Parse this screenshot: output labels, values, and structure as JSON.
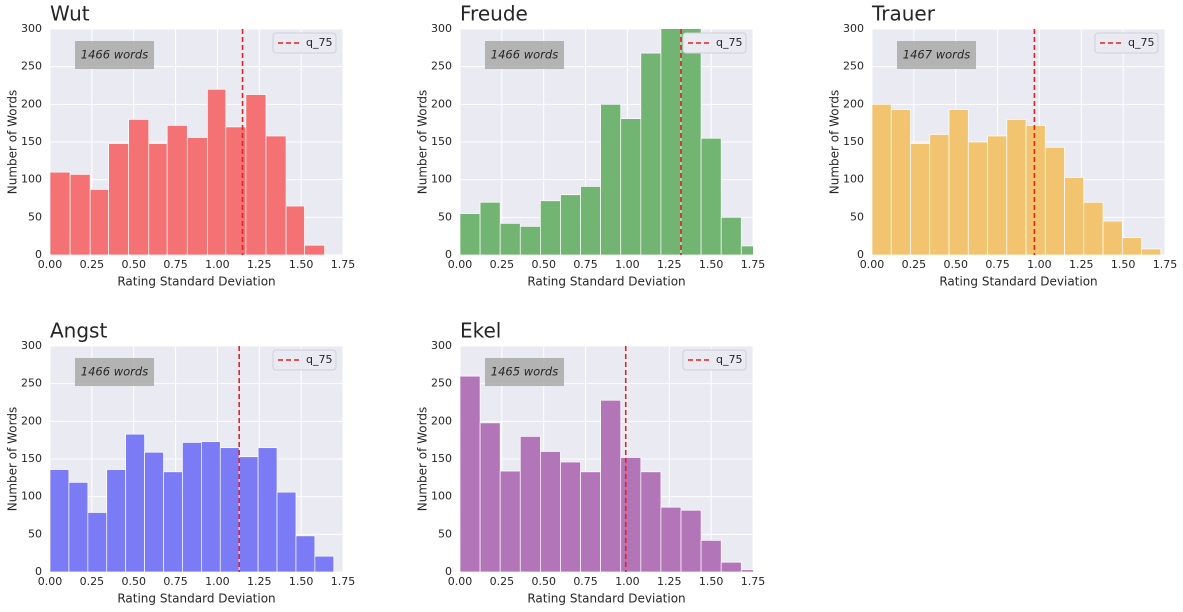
{
  "chart_data": [
    {
      "type": "histogram",
      "title": "Wut",
      "annotation": "1466 words",
      "xlabel": "Rating Standard Deviation",
      "ylabel": "Number of Words",
      "bins": [
        0,
        0.12,
        0.24,
        0.35,
        0.47,
        0.59,
        0.7,
        0.82,
        0.94,
        1.05,
        1.17,
        1.29,
        1.41,
        1.52,
        1.64
      ],
      "values": [
        110,
        107,
        87,
        148,
        180,
        148,
        172,
        156,
        220,
        170,
        213,
        158,
        65,
        13
      ],
      "color": "#f47174",
      "lines": [
        {
          "name": "q_75",
          "value": 1.15,
          "color": "#e8211d"
        }
      ],
      "xlim": [
        0,
        1.75
      ],
      "ylim": [
        0,
        300
      ],
      "grid": true,
      "legend": "upper right",
      "xticks": [
        {
          "value": 0,
          "label": "0.00"
        },
        {
          "value": 0.25,
          "label": "0.25"
        },
        {
          "value": 0.5,
          "label": "0.50"
        },
        {
          "value": 0.75,
          "label": "0.75"
        },
        {
          "value": 1,
          "label": "1.00"
        },
        {
          "value": 1.25,
          "label": "1.25"
        },
        {
          "value": 1.5,
          "label": "1.50"
        },
        {
          "value": 1.75,
          "label": "1.75"
        }
      ],
      "yticks": [
        0,
        50,
        100,
        150,
        200,
        250,
        300
      ]
    },
    {
      "type": "histogram",
      "title": "Freude",
      "annotation": "1466 words",
      "xlabel": "Rating Standard Deviation",
      "ylabel": "Number of Words",
      "bins": [
        0,
        0.12,
        0.24,
        0.36,
        0.48,
        0.6,
        0.72,
        0.84,
        0.96,
        1.08,
        1.2,
        1.32,
        1.44,
        1.56,
        1.68,
        1.8
      ],
      "values": [
        55,
        70,
        42,
        38,
        72,
        80,
        91,
        200,
        181,
        268,
        320,
        305,
        155,
        50,
        12
      ],
      "color": "#72b472",
      "lines": [
        {
          "name": "q_75",
          "value": 1.32,
          "color": "#e8211d"
        }
      ],
      "xlim": [
        0,
        1.75
      ],
      "ylim": [
        0,
        300
      ],
      "grid": true,
      "legend": "upper right",
      "xticks": [
        {
          "value": 0,
          "label": "0.00"
        },
        {
          "value": 0.25,
          "label": "0.25"
        },
        {
          "value": 0.5,
          "label": "0.50"
        },
        {
          "value": 0.75,
          "label": "0.75"
        },
        {
          "value": 1,
          "label": "1.00"
        },
        {
          "value": 1.25,
          "label": "1.25"
        },
        {
          "value": 1.5,
          "label": "1.50"
        },
        {
          "value": 1.75,
          "label": "1.75"
        }
      ],
      "yticks": [
        0,
        50,
        100,
        150,
        200,
        250,
        300
      ]
    },
    {
      "type": "histogram",
      "title": "Trauer",
      "annotation": "1467 words",
      "xlabel": "Rating Standard Deviation",
      "ylabel": "Number of Words",
      "bins": [
        0,
        0.115,
        0.23,
        0.345,
        0.46,
        0.575,
        0.69,
        0.805,
        0.92,
        1.035,
        1.15,
        1.265,
        1.38,
        1.495,
        1.61,
        1.725
      ],
      "values": [
        200,
        193,
        148,
        160,
        193,
        150,
        158,
        180,
        172,
        143,
        103,
        70,
        45,
        23,
        8
      ],
      "color": "#f3c470",
      "lines": [
        {
          "name": "q_75",
          "value": 0.97,
          "color": "#e8211d"
        }
      ],
      "xlim": [
        0,
        1.75
      ],
      "ylim": [
        0,
        300
      ],
      "grid": true,
      "legend": "upper right",
      "xticks": [
        {
          "value": 0,
          "label": "0.00"
        },
        {
          "value": 0.25,
          "label": "0.25"
        },
        {
          "value": 0.5,
          "label": "0.50"
        },
        {
          "value": 0.75,
          "label": "0.75"
        },
        {
          "value": 1,
          "label": "1.00"
        },
        {
          "value": 1.25,
          "label": "1.25"
        },
        {
          "value": 1.5,
          "label": "1.50"
        },
        {
          "value": 1.75,
          "label": "1.75"
        }
      ],
      "yticks": [
        0,
        50,
        100,
        150,
        200,
        250,
        300
      ]
    },
    {
      "type": "histogram",
      "title": "Angst",
      "annotation": "1466 words",
      "xlabel": "Rating Standard Deviation",
      "ylabel": "Number of Words",
      "bins": [
        0,
        0.113,
        0.226,
        0.339,
        0.452,
        0.565,
        0.678,
        0.791,
        0.904,
        1.017,
        1.13,
        1.243,
        1.356,
        1.469,
        1.582,
        1.695
      ],
      "values": [
        136,
        119,
        79,
        136,
        183,
        159,
        133,
        172,
        173,
        165,
        153,
        165,
        106,
        48,
        21
      ],
      "color": "#7b7bf5",
      "lines": [
        {
          "name": "q_75",
          "value": 1.13,
          "color": "#e8211d"
        }
      ],
      "xlim": [
        0,
        1.75
      ],
      "ylim": [
        0,
        300
      ],
      "grid": true,
      "legend": "upper right",
      "xticks": [
        {
          "value": 0,
          "label": "0.00"
        },
        {
          "value": 0.25,
          "label": "0.25"
        },
        {
          "value": 0.5,
          "label": "0.50"
        },
        {
          "value": 0.75,
          "label": "0.75"
        },
        {
          "value": 1,
          "label": "1.00"
        },
        {
          "value": 1.25,
          "label": "1.25"
        },
        {
          "value": 1.5,
          "label": "1.50"
        },
        {
          "value": 1.75,
          "label": "1.75"
        }
      ],
      "yticks": [
        0,
        50,
        100,
        150,
        200,
        250,
        300
      ]
    },
    {
      "type": "histogram",
      "title": "Ekel",
      "annotation": "1465 words",
      "xlabel": "Rating Standard Deviation",
      "ylabel": "Number of Words",
      "bins": [
        0,
        0.12,
        0.24,
        0.36,
        0.48,
        0.6,
        0.72,
        0.84,
        0.96,
        1.08,
        1.2,
        1.32,
        1.44,
        1.56,
        1.68,
        1.8
      ],
      "values": [
        260,
        198,
        134,
        180,
        160,
        146,
        133,
        228,
        152,
        133,
        86,
        82,
        42,
        13,
        3
      ],
      "color": "#b276b8",
      "lines": [
        {
          "name": "q_75",
          "value": 0.99,
          "color": "#e8211d"
        }
      ],
      "xlim": [
        0,
        1.75
      ],
      "ylim": [
        0,
        300
      ],
      "grid": true,
      "legend": "upper right",
      "xticks": [
        {
          "value": 0,
          "label": "0.00"
        },
        {
          "value": 0.25,
          "label": "0.25"
        },
        {
          "value": 0.5,
          "label": "0.50"
        },
        {
          "value": 0.75,
          "label": "0.75"
        },
        {
          "value": 1,
          "label": "1.00"
        },
        {
          "value": 1.25,
          "label": "1.25"
        },
        {
          "value": 1.5,
          "label": "1.50"
        },
        {
          "value": 1.75,
          "label": "1.75"
        }
      ],
      "yticks": [
        0,
        50,
        100,
        150,
        200,
        250,
        300
      ]
    }
  ]
}
